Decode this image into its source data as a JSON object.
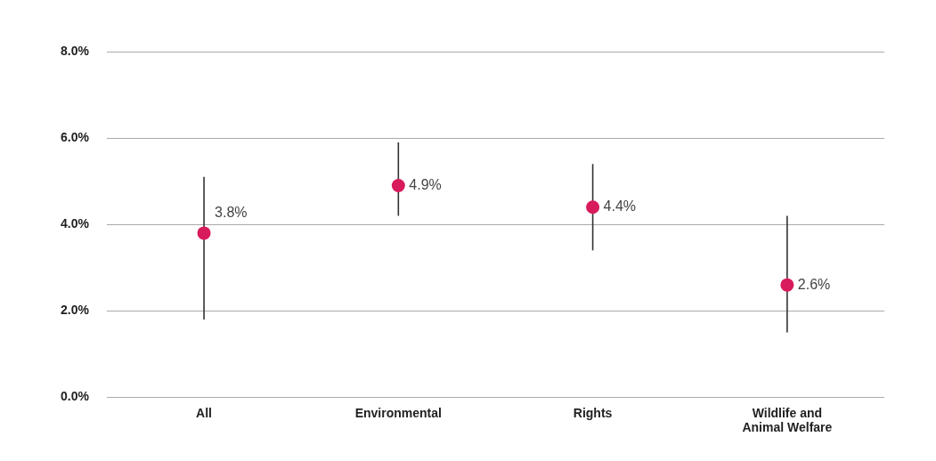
{
  "chart_data": {
    "type": "scatter",
    "categories": [
      "All",
      "Environmental",
      "Rights",
      "Wildlife and Animal Welfare"
    ],
    "series": [
      {
        "color": "#d81b5c",
        "values": [
          3.8,
          4.9,
          4.4,
          2.6
        ],
        "errors": [
          [
            1.8,
            5.1
          ],
          [
            4.2,
            5.9
          ],
          [
            3.4,
            5.4
          ],
          [
            1.5,
            4.2
          ]
        ],
        "value_labels": [
          "3.8%",
          "4.9%",
          "4.4%",
          "2.6%"
        ]
      }
    ],
    "ylim": [
      0,
      8
    ],
    "yticks": [
      {
        "value": 0,
        "label": "0.0%"
      },
      {
        "value": 2,
        "label": "2.0%"
      },
      {
        "value": 4,
        "label": "4.0%"
      },
      {
        "value": 6,
        "label": "6.0%"
      },
      {
        "value": 8,
        "label": "8.0%"
      }
    ],
    "grid": "y",
    "legend": false,
    "marker": "circle"
  }
}
